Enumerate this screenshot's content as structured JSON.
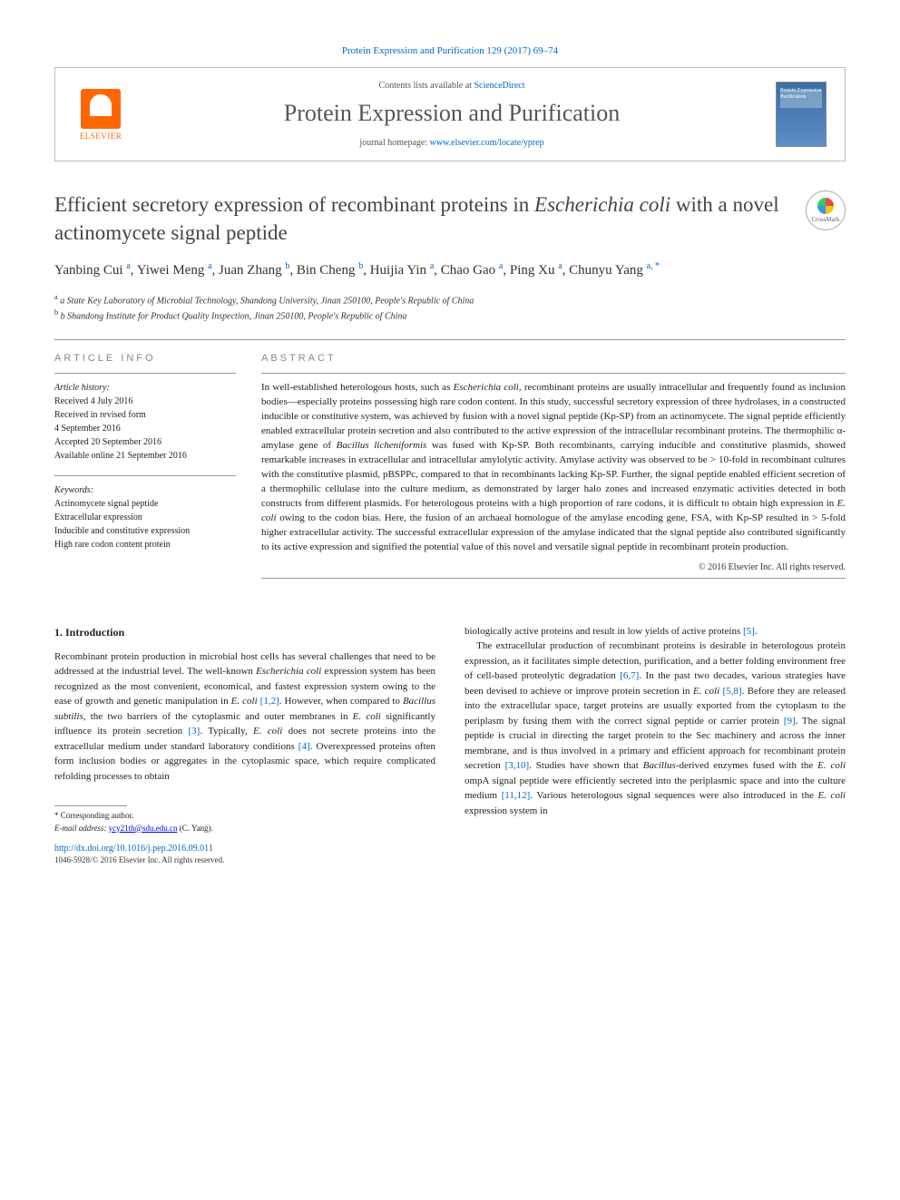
{
  "top_link": "Protein Expression and Purification 129 (2017) 69–74",
  "header": {
    "contents_prefix": "Contents lists available at ",
    "contents_link": "ScienceDirect",
    "journal_name": "Protein Expression and Purification",
    "homepage_prefix": "journal homepage: ",
    "homepage_url": "www.elsevier.com/locate/yprep",
    "publisher_label": "ELSEVIER",
    "cover_text": "Protein Expression Purification"
  },
  "crossmark_label": "CrossMark",
  "title_html": "Efficient secretory expression of recombinant proteins in <em>Escherichia coli</em> with a novel actinomycete signal peptide",
  "authors_html": "Yanbing Cui <sup>a</sup>, Yiwei Meng <sup>a</sup>, Juan Zhang <sup>b</sup>, Bin Cheng <sup>b</sup>, Huijia Yin <sup>a</sup>, Chao Gao <sup>a</sup>, Ping Xu <sup>a</sup>, Chunyu Yang <sup>a, *</sup>",
  "affiliations": [
    "a State Key Laboratory of Microbial Technology, Shandong University, Jinan 250100, People's Republic of China",
    "b Shandong Institute for Product Quality Inspection, Jinan 250100, People's Republic of China"
  ],
  "info": {
    "heading": "ARTICLE INFO",
    "history_label": "Article history:",
    "history": [
      "Received 4 July 2016",
      "Received in revised form",
      "4 September 2016",
      "Accepted 20 September 2016",
      "Available online 21 September 2016"
    ],
    "keywords_label": "Keywords:",
    "keywords": [
      "Actinomycete signal peptide",
      "Extracellular expression",
      "Inducible and constitutive expression",
      "High rare codon content protein"
    ]
  },
  "abstract": {
    "heading": "ABSTRACT",
    "text_html": "In well-established heterologous hosts, such as <em>Escherichia coli</em>, recombinant proteins are usually intracellular and frequently found as inclusion bodies—especially proteins possessing high rare codon content. In this study, successful secretory expression of three hydrolases, in a constructed inducible or constitutive system, was achieved by fusion with a novel signal peptide (Kp-SP) from an actinomycete. The signal peptide efficiently enabled extracellular protein secretion and also contributed to the active expression of the intracellular recombinant proteins. The thermophilic α-amylase gene of <em>Bacillus licheniformis</em> was fused with Kp-SP. Both recombinants, carrying inducible and constitutive plasmids, showed remarkable increases in extracellular and intracellular amylolytic activity. Amylase activity was observed to be > 10-fold in recombinant cultures with the constitutive plasmid, pBSPPc, compared to that in recombinants lacking Kp-SP. Further, the signal peptide enabled efficient secretion of a thermophilic cellulase into the culture medium, as demonstrated by larger halo zones and increased enzymatic activities detected in both constructs from different plasmids. For heterologous proteins with a high proportion of rare codons, it is difficult to obtain high expression in <em>E. coli</em> owing to the codon bias. Here, the fusion of an archaeal homologue of the amylase encoding gene, FSA, with Kp-SP resulted in > 5-fold higher extracellular activity. The successful extracellular expression of the amylase indicated that the signal peptide also contributed significantly to its active expression and signified the potential value of this novel and versatile signal peptide in recombinant protein production.",
    "copyright": "© 2016 Elsevier Inc. All rights reserved."
  },
  "body": {
    "section_number": "1.",
    "section_title": "Introduction",
    "col1_html": "Recombinant protein production in microbial host cells has several challenges that need to be addressed at the industrial level. The well-known <em>Escherichia coli</em> expression system has been recognized as the most convenient, economical, and fastest expression system owing to the ease of growth and genetic manipulation in <em>E. coli</em> <span class='ref'>[1,2]</span>. However, when compared to <em>Bacillus subtilis</em>, the two barriers of the cytoplasmic and outer membranes in <em>E. coli</em> significantly influence its protein secretion <span class='ref'>[3]</span>. Typically, <em>E. coli</em> does not secrete proteins into the extracellular medium under standard laboratory conditions <span class='ref'>[4]</span>. Overexpressed proteins often form inclusion bodies or aggregates in the cytoplasmic space, which require complicated refolding processes to obtain",
    "col2_html": "biologically active proteins and result in low yields of active proteins <span class='ref'>[5]</span>.<br>&nbsp;&nbsp;&nbsp;The extracellular production of recombinant proteins is desirable in heterologous protein expression, as it facilitates simple detection, purification, and a better folding environment free of cell-based proteolytic degradation <span class='ref'>[6,7]</span>. In the past two decades, various strategies have been devised to achieve or improve protein secretion in <em>E. coli</em> <span class='ref'>[5,8]</span>. Before they are released into the extracellular space, target proteins are usually exported from the cytoplasm to the periplasm by fusing them with the correct signal peptide or carrier protein <span class='ref'>[9]</span>. The signal peptide is crucial in directing the target protein to the Sec machinery and across the inner membrane, and is thus involved in a primary and efficient approach for recombinant protein secretion <span class='ref'>[3,10]</span>. Studies have shown that <em>Bacillus</em>-derived enzymes fused with the <em>E. coli</em> ompA signal peptide were efficiently secreted into the periplasmic space and into the culture medium <span class='ref'>[11,12]</span>. Various heterologous signal sequences were also introduced in the <em>E. coli</em> expression system in"
  },
  "footer": {
    "corresponding_label": "* Corresponding author.",
    "email_label": "E-mail address:",
    "email": "ycy21th@sdu.edu.cn",
    "email_name": "(C. Yang).",
    "doi": "http://dx.doi.org/10.1016/j.pep.2016.09.011",
    "issn": "1046-5928/© 2016 Elsevier Inc. All rights reserved."
  }
}
